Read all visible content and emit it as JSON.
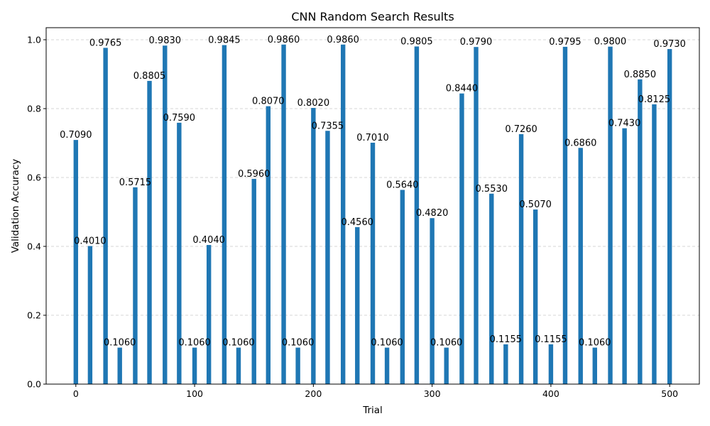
{
  "chart_data": {
    "type": "bar",
    "title": "CNN Random Search Results",
    "xlabel": "Trial",
    "ylabel": "Validation Accuracy",
    "xlim": [
      -25,
      525
    ],
    "ylim": [
      0,
      1.035
    ],
    "xticks": [
      "0",
      "100",
      "200",
      "300",
      "400",
      "500"
    ],
    "yticks": [
      "0.0",
      "0.2",
      "0.4",
      "0.6",
      "0.8",
      "1.0"
    ],
    "grid": "y dashed",
    "bar_color": "#1f77b4",
    "x": [
      0,
      12,
      25,
      37,
      50,
      62,
      75,
      87,
      100,
      112,
      125,
      137,
      150,
      162,
      175,
      187,
      200,
      212,
      225,
      237,
      250,
      262,
      275,
      287,
      300,
      312,
      325,
      337,
      350,
      362,
      375,
      387,
      400,
      412,
      425,
      437,
      450,
      462,
      475,
      487,
      500
    ],
    "values": [
      0.709,
      0.401,
      0.9765,
      0.106,
      0.5715,
      0.8805,
      0.983,
      0.759,
      0.106,
      0.404,
      0.9845,
      0.106,
      0.596,
      0.807,
      0.986,
      0.106,
      0.802,
      0.7355,
      0.986,
      0.456,
      0.701,
      0.106,
      0.564,
      0.9805,
      0.482,
      0.106,
      0.844,
      0.979,
      0.553,
      0.1155,
      0.726,
      0.507,
      0.1155,
      0.9795,
      0.686,
      0.106,
      0.98,
      0.743,
      0.885,
      0.8125,
      0.973
    ],
    "labels": [
      "0.7090",
      "0.4010",
      "0.9765",
      "0.1060",
      "0.5715",
      "0.8805",
      "0.9830",
      "0.7590",
      "0.1060",
      "0.4040",
      "0.9845",
      "0.1060",
      "0.5960",
      "0.8070",
      "0.9860",
      "0.1060",
      "0.8020",
      "0.7355",
      "0.9860",
      "0.4560",
      "0.7010",
      "0.1060",
      "0.5640",
      "0.9805",
      "0.4820",
      "0.1060",
      "0.8440",
      "0.9790",
      "0.5530",
      "0.1155",
      "0.7260",
      "0.5070",
      "0.1155",
      "0.9795",
      "0.6860",
      "0.1060",
      "0.9800",
      "0.7430",
      "0.8850",
      "0.8125",
      "0.9730"
    ]
  }
}
